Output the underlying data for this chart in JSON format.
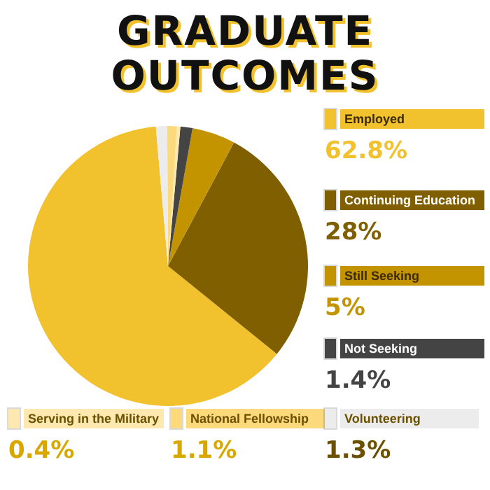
{
  "chart_data": {
    "type": "pie",
    "title": "GRADUATE OUTCOMES",
    "categories": [
      "Employed",
      "Continuing Education",
      "Still Seeking",
      "Not Seeking",
      "Serving in the Military",
      "National Fellowship",
      "Volunteering"
    ],
    "values": [
      62.8,
      28,
      5,
      1.4,
      0.4,
      1.1,
      1.3
    ],
    "colors": [
      "#f2c12e",
      "#7f5f00",
      "#c49400",
      "#444444",
      "#fde9b0",
      "#fcd97a",
      "#ececec"
    ],
    "value_labels": [
      "62.8%",
      "28%",
      "5%",
      "1.4%",
      "0.4%",
      "1.1%",
      "1.3%"
    ],
    "legend": "right"
  }
}
